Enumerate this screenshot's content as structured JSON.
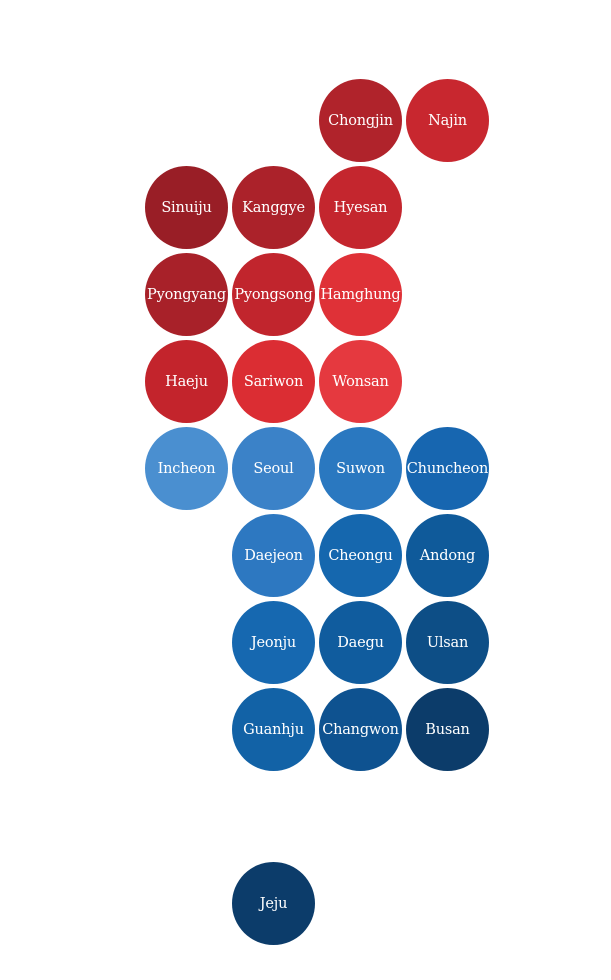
{
  "map": {
    "cities": [
      {
        "name": "Chongjin",
        "row": 0,
        "col": 2,
        "color": "#b0232b"
      },
      {
        "name": "Najin",
        "row": 0,
        "col": 3,
        "color": "#c8272f"
      },
      {
        "name": "Sinuiju",
        "row": 1,
        "col": 0,
        "color": "#991e26"
      },
      {
        "name": "Kanggye",
        "row": 1,
        "col": 1,
        "color": "#ab222a"
      },
      {
        "name": "Hyesan",
        "row": 1,
        "col": 2,
        "color": "#c4262e"
      },
      {
        "name": "Pyongyang",
        "row": 2,
        "col": 0,
        "color": "#a82129"
      },
      {
        "name": "Pyongsong",
        "row": 2,
        "col": 1,
        "color": "#c1252d"
      },
      {
        "name": "Hamghung",
        "row": 2,
        "col": 2,
        "color": "#df3137"
      },
      {
        "name": "Haeju",
        "row": 3,
        "col": 0,
        "color": "#c3242c"
      },
      {
        "name": "Sariwon",
        "row": 3,
        "col": 1,
        "color": "#db2d33"
      },
      {
        "name": "Wonsan",
        "row": 3,
        "col": 2,
        "color": "#e5393f"
      },
      {
        "name": "Incheon",
        "row": 4,
        "col": 0,
        "color": "#4a8fd0"
      },
      {
        "name": "Seoul",
        "row": 4,
        "col": 1,
        "color": "#3b82c8"
      },
      {
        "name": "Suwon",
        "row": 4,
        "col": 2,
        "color": "#2a78c0"
      },
      {
        "name": "Chuncheon",
        "row": 4,
        "col": 3,
        "color": "#1766b0"
      },
      {
        "name": "Daejeon",
        "row": 5,
        "col": 1,
        "color": "#2d78c1"
      },
      {
        "name": "Cheongu",
        "row": 5,
        "col": 2,
        "color": "#1567ae"
      },
      {
        "name": "Andong",
        "row": 5,
        "col": 3,
        "color": "#0f5a9a"
      },
      {
        "name": "Jeonju",
        "row": 6,
        "col": 1,
        "color": "#1668b0"
      },
      {
        "name": "Daegu",
        "row": 6,
        "col": 2,
        "color": "#105c9e"
      },
      {
        "name": "Ulsan",
        "row": 6,
        "col": 3,
        "color": "#0d4e86"
      },
      {
        "name": "Guanhju",
        "row": 7,
        "col": 1,
        "color": "#1262a6"
      },
      {
        "name": "Changwon",
        "row": 7,
        "col": 2,
        "color": "#0e5290"
      },
      {
        "name": "Busan",
        "row": 7,
        "col": 3,
        "color": "#0c3c6a"
      },
      {
        "name": "Jeju",
        "row": 9,
        "col": 1,
        "color": "#0c3c6a"
      }
    ]
  }
}
